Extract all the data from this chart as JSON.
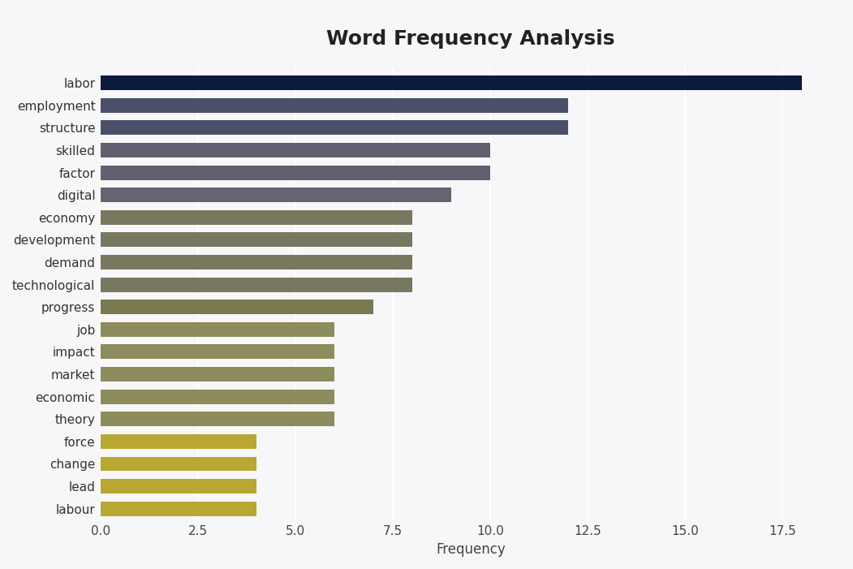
{
  "title": "Word Frequency Analysis",
  "xlabel": "Frequency",
  "categories": [
    "labour",
    "lead",
    "change",
    "force",
    "theory",
    "economic",
    "market",
    "impact",
    "job",
    "progress",
    "technological",
    "demand",
    "development",
    "economy",
    "digital",
    "factor",
    "skilled",
    "structure",
    "employment",
    "labor"
  ],
  "values": [
    4,
    4,
    4,
    4,
    6,
    6,
    6,
    6,
    6,
    7,
    8,
    8,
    8,
    8,
    9,
    10,
    10,
    12,
    12,
    18
  ],
  "bar_colors": [
    "#b8a832",
    "#b8a832",
    "#b8a832",
    "#b8a832",
    "#8c8c5c",
    "#8c8c5c",
    "#8c8c5c",
    "#8c8c5c",
    "#8c8c5c",
    "#7a7a52",
    "#787860",
    "#787860",
    "#787860",
    "#787860",
    "#656572",
    "#606070",
    "#606070",
    "#4a4f6a",
    "#4a4f6a",
    "#0d1b3e"
  ],
  "xlim": [
    0,
    19
  ],
  "background_color": "#f7f7f9",
  "plot_bg_color": "#f7f7f9",
  "title_fontsize": 18,
  "label_fontsize": 12,
  "tick_fontsize": 11,
  "xticks": [
    0.0,
    2.5,
    5.0,
    7.5,
    10.0,
    12.5,
    15.0,
    17.5
  ],
  "xtick_labels": [
    "0.0",
    "2.5",
    "5.0",
    "7.5",
    "10.0",
    "12.5",
    "15.0",
    "17.5"
  ],
  "figsize": [
    10.51,
    7.01
  ],
  "dpi": 100
}
